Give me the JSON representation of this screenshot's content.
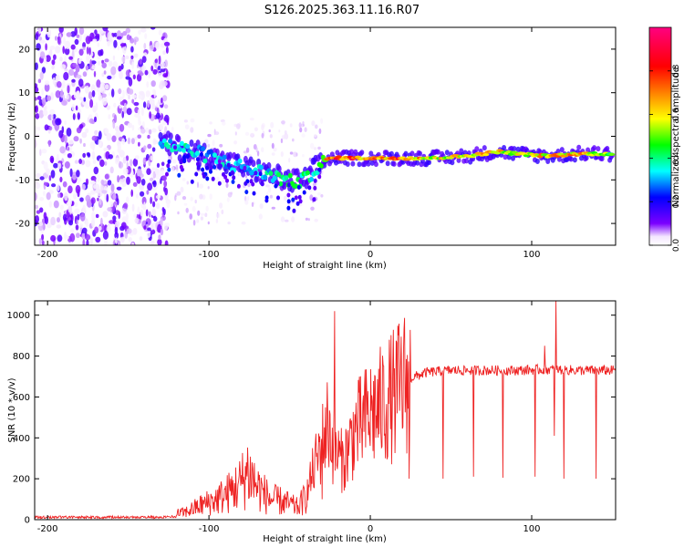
{
  "title": "S126.2025.363.11.16.R07",
  "chart_data": [
    {
      "type": "heatmap",
      "name": "spectrogram",
      "xlabel": "Height of straight line (km)",
      "ylabel": "Frequency (Hz)",
      "xlim": [
        -208,
        152
      ],
      "ylim": [
        -25,
        25
      ],
      "xticks": [
        -200,
        -100,
        0,
        100
      ],
      "xtick_labels": [
        "-200",
        "-100",
        "0",
        "100"
      ],
      "yticks": [
        -20,
        -10,
        0,
        10,
        20
      ],
      "ytick_labels": [
        "-20",
        "-10",
        "0",
        "10",
        "20"
      ],
      "colorbar": {
        "label": "Normalized spectral amplitude",
        "range": [
          0,
          1
        ],
        "ticks": [
          0.0,
          0.2,
          0.4,
          0.6,
          0.8
        ],
        "tick_labels": [
          "0.0",
          "0.2",
          "0.4",
          "0.6",
          "0.8"
        ],
        "colors": [
          "#ffffff",
          "#7b00ff",
          "#0000ff",
          "#00ffff",
          "#00ff00",
          "#ffff00",
          "#ff8000",
          "#ff0000",
          "#ff0080"
        ]
      },
      "signal_track": [
        {
          "x": -130,
          "freq": -1.5,
          "amp": 0.35
        },
        {
          "x": -120,
          "freq": -2.5,
          "amp": 0.4
        },
        {
          "x": -110,
          "freq": -3.5,
          "amp": 0.35
        },
        {
          "x": -100,
          "freq": -4.5,
          "amp": 0.35
        },
        {
          "x": -90,
          "freq": -6.0,
          "amp": 0.35
        },
        {
          "x": -80,
          "freq": -7.0,
          "amp": 0.3
        },
        {
          "x": -70,
          "freq": -8.0,
          "amp": 0.35
        },
        {
          "x": -60,
          "freq": -9.0,
          "amp": 0.4
        },
        {
          "x": -50,
          "freq": -10.5,
          "amp": 0.45
        },
        {
          "x": -40,
          "freq": -10.0,
          "amp": 0.45
        },
        {
          "x": -33,
          "freq": -7.0,
          "amp": 0.4
        },
        {
          "x": -25,
          "freq": -5.0,
          "amp": 0.8
        },
        {
          "x": -10,
          "freq": -5.0,
          "amp": 0.85
        },
        {
          "x": 0,
          "freq": -5.0,
          "amp": 0.7
        },
        {
          "x": 20,
          "freq": -5.0,
          "amp": 0.85
        },
        {
          "x": 40,
          "freq": -5.0,
          "amp": 0.6
        },
        {
          "x": 60,
          "freq": -4.5,
          "amp": 0.7
        },
        {
          "x": 80,
          "freq": -3.5,
          "amp": 0.7
        },
        {
          "x": 90,
          "freq": -4.0,
          "amp": 0.6
        },
        {
          "x": 110,
          "freq": -4.5,
          "amp": 0.7
        },
        {
          "x": 130,
          "freq": -4.0,
          "amp": 0.7
        },
        {
          "x": 150,
          "freq": -4.0,
          "amp": 0.55
        }
      ]
    },
    {
      "type": "line",
      "name": "snr",
      "xlabel": "Height of straight line (km)",
      "ylabel": "SNR (10 * v/v)",
      "xlim": [
        -208,
        152
      ],
      "ylim": [
        0,
        1070
      ],
      "xticks": [
        -200,
        -100,
        0,
        100
      ],
      "xtick_labels": [
        "-200",
        "-100",
        "0",
        "100"
      ],
      "yticks": [
        0,
        200,
        400,
        600,
        800,
        1000
      ],
      "ytick_labels": [
        "0",
        "200",
        "400",
        "600",
        "800",
        "1000"
      ],
      "color": "#ee2222",
      "series": [
        {
          "name": "SNR",
          "x": [
            -208,
            -180,
            -150,
            -130,
            -115,
            -105,
            -95,
            -88,
            -80,
            -76,
            -70,
            -62,
            -55,
            -45,
            -40,
            -35,
            -30,
            -26,
            -24,
            -21,
            -17,
            -13,
            -10,
            -5,
            0,
            5,
            10,
            15,
            18,
            22,
            28,
            35,
            50,
            70,
            90,
            110,
            130,
            152
          ],
          "y": [
            20,
            20,
            20,
            20,
            35,
            70,
            100,
            130,
            180,
            240,
            160,
            100,
            90,
            60,
            110,
            250,
            370,
            480,
            380,
            330,
            280,
            360,
            430,
            470,
            520,
            540,
            580,
            610,
            640,
            680,
            700,
            720,
            730,
            730,
            730,
            735,
            730,
            730
          ]
        }
      ],
      "spikes_up": [
        {
          "x": -22,
          "y": 1020
        },
        {
          "x": 12,
          "y": 760
        },
        {
          "x": 15,
          "y": 740
        },
        {
          "x": 108,
          "y": 850
        },
        {
          "x": 115,
          "y": 1070
        }
      ],
      "dips": [
        {
          "x": -30,
          "y": 100
        },
        {
          "x": 24,
          "y": 200
        },
        {
          "x": 45,
          "y": 200
        },
        {
          "x": 64,
          "y": 210
        },
        {
          "x": 82,
          "y": 205
        },
        {
          "x": 102,
          "y": 210
        },
        {
          "x": 114,
          "y": 410
        },
        {
          "x": 120,
          "y": 200
        },
        {
          "x": 140,
          "y": 200
        }
      ]
    }
  ]
}
